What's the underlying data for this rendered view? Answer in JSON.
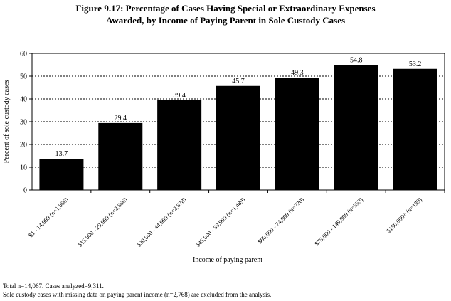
{
  "title_line1": "Figure 9.17:  Percentage of Cases Having Special or Extraordinary Expenses",
  "title_line2": "Awarded, by Income of Paying Parent in Sole Custody Cases",
  "chart_data": {
    "type": "bar",
    "categories": [
      "$1 - 14,999 (n=1,066)",
      "$15,000 - 29,999 (n=2,666)",
      "$30,000 - 44,999 (n=2,678)",
      "$45,000 - 59,999 (n=1,489)",
      "$60,000 - 74,999 (n=720)",
      "$75,000 - 149,999 (n=553)",
      "$150,000+ (n=139)"
    ],
    "values": [
      13.7,
      29.4,
      39.4,
      45.7,
      49.3,
      54.8,
      53.2
    ],
    "data_labels": [
      "13.7",
      "29.4",
      "39.4",
      "45.7",
      "49.3",
      "54.8",
      "53.2"
    ],
    "xlabel": "Income of paying parent",
    "ylabel": "Percent of sole custody cases",
    "ylim": [
      0,
      60
    ],
    "yticks": [
      0,
      10,
      20,
      30,
      40,
      50,
      60
    ],
    "grid": "horizontal dashed",
    "bar_color": "#000000"
  },
  "notes": {
    "line1": "Total n=14,067.  Cases analyzed=9,311.",
    "line2": "Sole custody cases with missing data on paying parent income (n=2,768) are excluded from the analysis."
  }
}
